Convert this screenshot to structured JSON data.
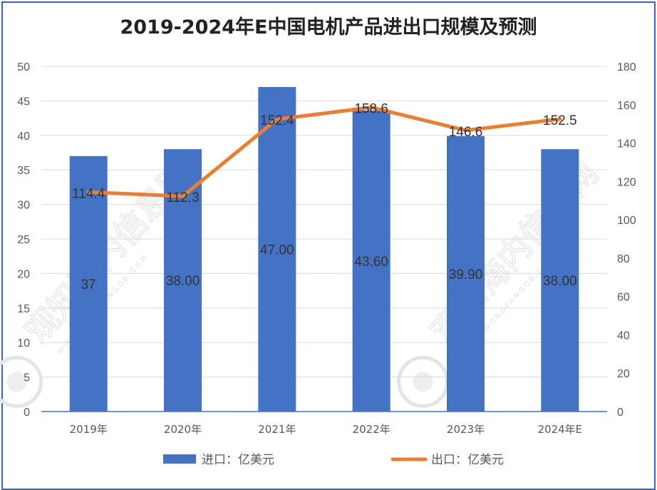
{
  "chart_data": {
    "type": "bar+line",
    "title": "2019-2024年E中国电机产品进出口规模及预测",
    "categories": [
      "2019年",
      "2020年",
      "2021年",
      "2022年",
      "2023年",
      "2024年E"
    ],
    "series": [
      {
        "name": "进口：亿美元",
        "type": "bar",
        "axis": "left",
        "color": "#4472c4",
        "values": [
          37,
          38.0,
          47.0,
          43.6,
          39.9,
          38.0
        ],
        "labels": [
          "37",
          "38.00",
          "47.00",
          "43.60",
          "39.90",
          "38.00"
        ]
      },
      {
        "name": "出口：亿美元",
        "type": "line",
        "axis": "right",
        "color": "#ed7d31",
        "values": [
          114.4,
          112.3,
          152.4,
          158.6,
          146.6,
          152.5
        ],
        "labels": [
          "114.4",
          "112.3",
          "152.4",
          "158.6",
          "146.6",
          "152.5"
        ]
      }
    ],
    "y_left": {
      "min": 0,
      "max": 50,
      "step": 5,
      "ticks": [
        "0",
        "5",
        "10",
        "15",
        "20",
        "25",
        "30",
        "35",
        "40",
        "45",
        "50"
      ]
    },
    "y_right": {
      "min": 0,
      "max": 180,
      "step": 20,
      "ticks": [
        "0",
        "20",
        "40",
        "60",
        "80",
        "100",
        "120",
        "140",
        "160",
        "180"
      ]
    },
    "grid": true,
    "legend_position": "bottom"
  },
  "watermark": {
    "text": "观知海内信息网",
    "subtext": "WWW.DONGFANGQB.COM"
  }
}
